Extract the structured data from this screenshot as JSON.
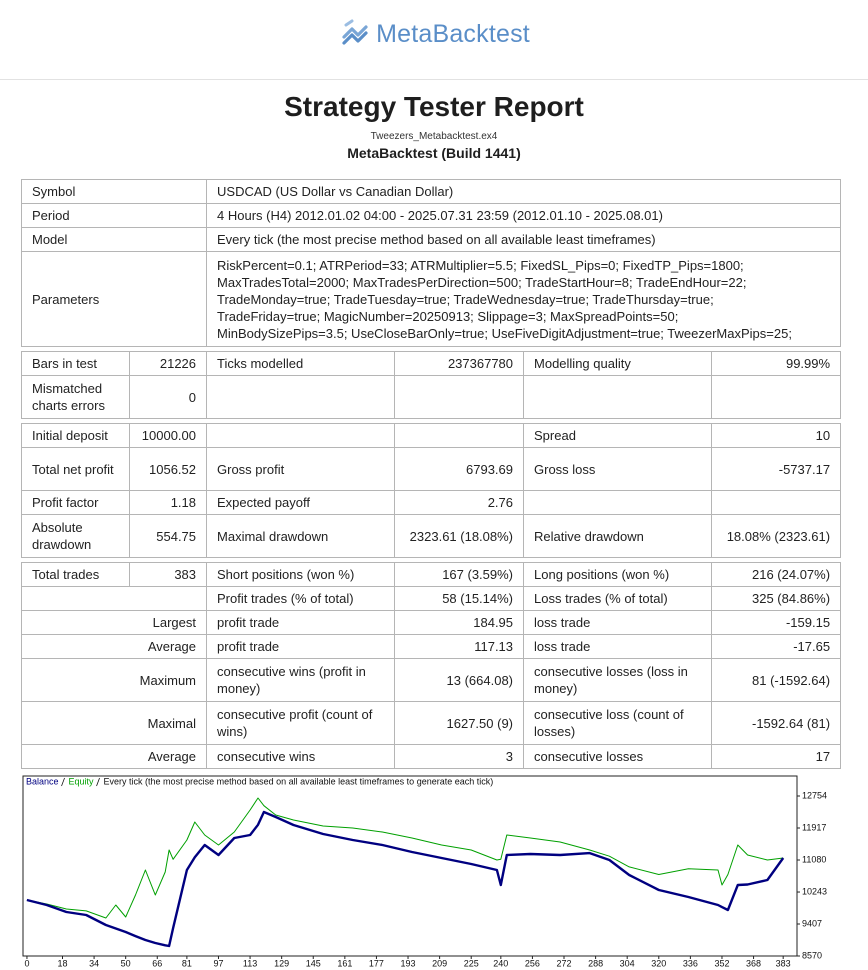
{
  "header": {
    "brand": "MetaBacktest",
    "title": "Strategy Tester Report",
    "file": "Tweezers_Metabacktest.ex4",
    "build": "MetaBacktest (Build 1441)"
  },
  "table": {
    "rows": [
      [
        "Symbol",
        "USDCAD (US Dollar vs Canadian Dollar)"
      ],
      [
        "Period",
        "4 Hours (H4) 2012.01.02 04:00 - 2025.07.31 23:59 (2012.01.10 - 2025.08.01)"
      ],
      [
        "Model",
        "Every tick (the most precise method based on all available least timeframes)"
      ],
      [
        "Parameters",
        [
          "RiskPercent=0.1; ATRPeriod=33; ATRMultiplier=5.5; FixedSL_Pips=0; FixedTP_Pips=1800;",
          "MaxTradesTotal=2000; MaxTradesPerDirection=500; TradeStartHour=8; TradeEndHour=22;",
          "TradeMonday=true; TradeTuesday=true; TradeWednesday=true; TradeThursday=true;",
          "TradeFriday=true; MagicNumber=20250913; Slippage=3; MaxSpreadPoints=50;",
          "MinBodySizePips=3.5; UseCloseBarOnly=true; UseFiveDigitAdjustment=true; TweezerMaxPips=25;"
        ]
      ],
      [
        "Bars in test",
        "21226",
        "Ticks modelled",
        "237367780",
        "Modelling quality",
        "99.99%"
      ],
      [
        "Mismatched charts errors",
        "0"
      ],
      [
        "Initial deposit",
        "10000.00",
        "Spread",
        "10"
      ],
      [
        "Total net profit",
        "1056.52",
        "Gross profit",
        "6793.69",
        "Gross loss",
        "-5737.17"
      ],
      [
        "Profit factor",
        "1.18",
        "Expected payoff",
        "2.76"
      ],
      [
        "Absolute drawdown",
        "554.75",
        "Maximal drawdown",
        "2323.61 (18.08%)",
        "Relative drawdown",
        "18.08% (2323.61)"
      ],
      [
        "Total trades",
        "383",
        "Short positions (won %)",
        "167 (3.59%)",
        "Long positions (won %)",
        "216 (24.07%)"
      ],
      [
        "Profit trades (% of total)",
        "58 (15.14%)",
        "Loss trades (% of total)",
        "325 (84.86%)"
      ],
      [
        "Largest",
        "profit trade",
        "184.95",
        "loss trade",
        "-159.15"
      ],
      [
        "Average",
        "profit trade",
        "117.13",
        "loss trade",
        "-17.65"
      ],
      [
        "Maximum",
        "consecutive wins (profit in money)",
        "13 (664.08)",
        "consecutive losses (loss in money)",
        "81 (-1592.64)"
      ],
      [
        "Maximal",
        "consecutive profit (count of wins)",
        "1627.50 (9)",
        "consecutive loss (count of losses)",
        "-1592.64 (81)"
      ],
      [
        "Average",
        "consecutive wins",
        "3",
        "consecutive losses",
        "17"
      ]
    ]
  },
  "chart_data": {
    "type": "line",
    "note": "Every tick (the most precise method based on all available least timeframes to generate each tick)",
    "x": [
      0,
      10,
      20,
      30,
      40,
      45,
      50,
      55,
      60,
      65,
      70,
      72,
      74,
      81,
      85,
      90,
      97,
      105,
      113,
      117,
      120,
      126,
      135,
      150,
      165,
      180,
      195,
      210,
      225,
      238,
      240,
      243,
      255,
      270,
      285,
      295,
      305,
      320,
      335,
      350,
      352,
      355,
      360,
      365,
      375,
      383
    ],
    "series": [
      {
        "name": "Balance",
        "color": "#000080",
        "values": [
          10034,
          9904,
          9720,
          9642,
          9381,
          9290,
          9198,
          9090,
          8988,
          8910,
          8850,
          8831,
          9300,
          10819,
          11150,
          11473,
          11211,
          11656,
          11734,
          12000,
          12336,
          12205,
          11995,
          11760,
          11603,
          11473,
          11290,
          11133,
          10976,
          10819,
          10427,
          11211,
          11237,
          11211,
          11260,
          11080,
          10688,
          10296,
          10113,
          9904,
          9850,
          9773,
          10427,
          10440,
          10558,
          11133
        ]
      },
      {
        "name": "Equity",
        "color": "#00a000",
        "values": [
          10034,
          9930,
          9800,
          9750,
          9563,
          9904,
          9590,
          10165,
          10819,
          10165,
          10767,
          11342,
          11100,
          11603,
          12074,
          11734,
          11473,
          11812,
          12388,
          12701,
          12500,
          12257,
          12126,
          11970,
          11917,
          11812,
          11656,
          11473,
          11342,
          11080,
          11100,
          11734,
          11656,
          11551,
          11342,
          11180,
          10900,
          10700,
          10850,
          10819,
          10427,
          10700,
          11473,
          11211,
          11080,
          11133
        ]
      }
    ],
    "xlim": [
      -2,
      390
    ],
    "xticks": [
      0,
      18,
      34,
      50,
      66,
      81,
      97,
      113,
      129,
      145,
      161,
      177,
      193,
      209,
      225,
      240,
      256,
      272,
      288,
      304,
      320,
      336,
      352,
      368,
      383
    ],
    "ylim": [
      8570,
      13277
    ],
    "yticks": [
      8570,
      9407,
      10243,
      11080,
      11917,
      12754
    ]
  }
}
